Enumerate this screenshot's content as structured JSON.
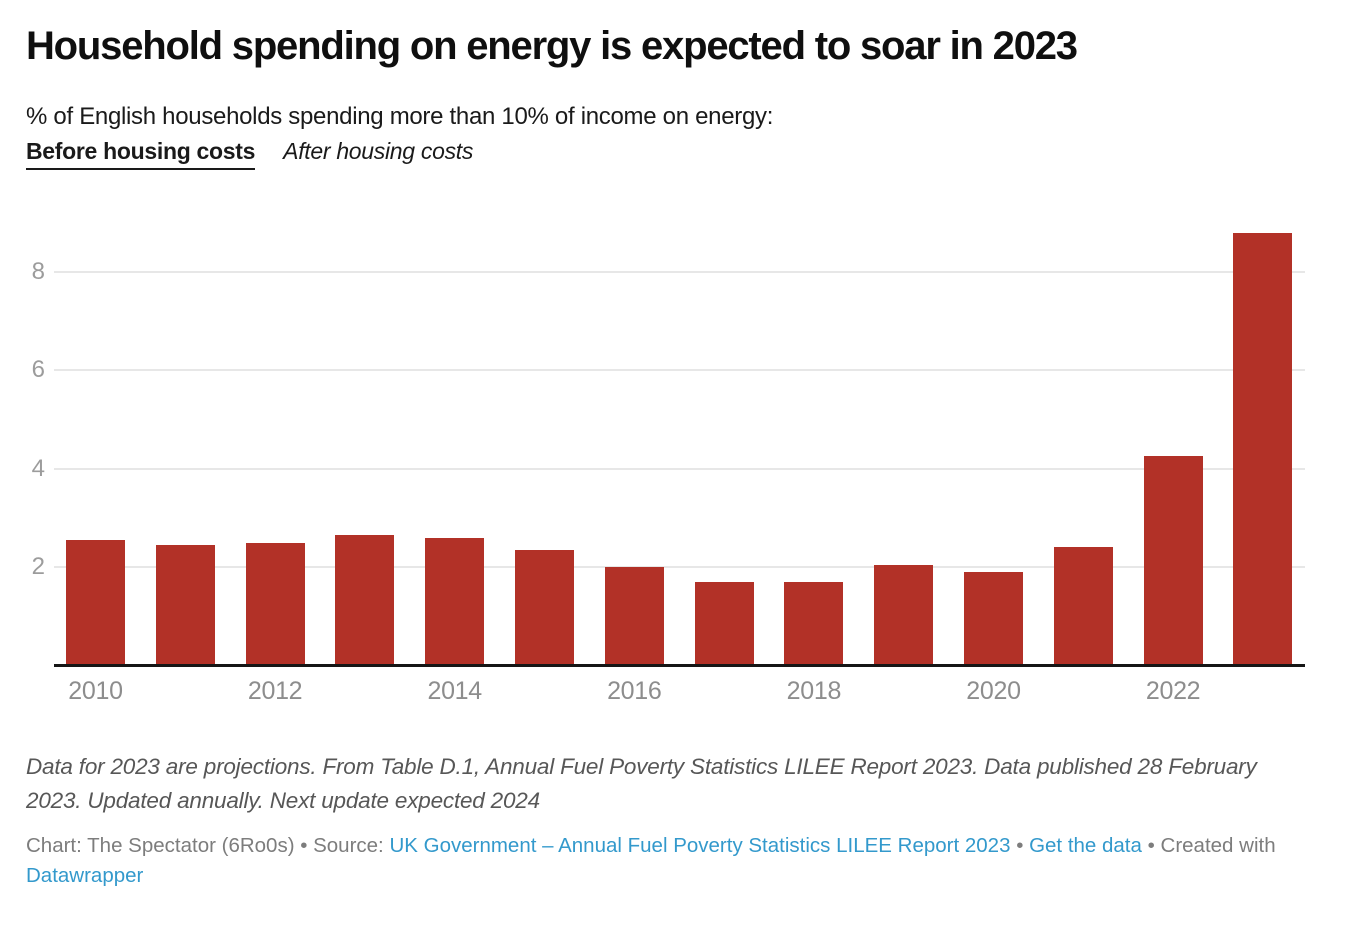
{
  "header": {
    "title": "Household spending on energy is expected to soar in 2023",
    "subtitle": "% of English households spending more than 10% of income on energy:",
    "tabs": [
      {
        "label": "Before housing costs",
        "active": true
      },
      {
        "label": "After housing costs",
        "active": false
      }
    ]
  },
  "chart_data": {
    "type": "bar",
    "title": "Household spending on energy is expected to soar in 2023",
    "subtitle": "% of English households spending more than 10% of income on energy:",
    "series_label": "Before housing costs",
    "categories": [
      "2010",
      "2011",
      "2012",
      "2013",
      "2014",
      "2015",
      "2016",
      "2017",
      "2018",
      "2019",
      "2020",
      "2021",
      "2022",
      "2023"
    ],
    "values": [
      2.55,
      2.45,
      2.5,
      2.65,
      2.6,
      2.35,
      2.0,
      1.7,
      1.7,
      2.05,
      1.9,
      2.4,
      4.25,
      8.8
    ],
    "ylim": [
      0,
      9
    ],
    "yticks": [
      2,
      4,
      6,
      8
    ],
    "xtick_labels": [
      "2010",
      "2012",
      "2014",
      "2016",
      "2018",
      "2020",
      "2022"
    ],
    "grid": "horizontal",
    "legend_position": "none",
    "bar_color": "#b23127",
    "gridline_color": "#e7e7e7",
    "axis_label_color": "#8d8d8d"
  },
  "footer": {
    "note": "Data for 2023 are projections. From Table D.1, Annual Fuel Poverty Statistics LILEE Report 2023. Data published 28 February 2023. Updated annually. Next update expected 2024",
    "credit": {
      "chart_prefix": "Chart: The Spectator (6Ro0s) • Source:",
      "source_link": "UK Government – Annual Fuel Poverty Statistics LILEE Report 2023",
      "bullet": "•",
      "get_data_link": "Get the data",
      "created_with": "Created with",
      "tool_link": "Datawrapper"
    }
  }
}
